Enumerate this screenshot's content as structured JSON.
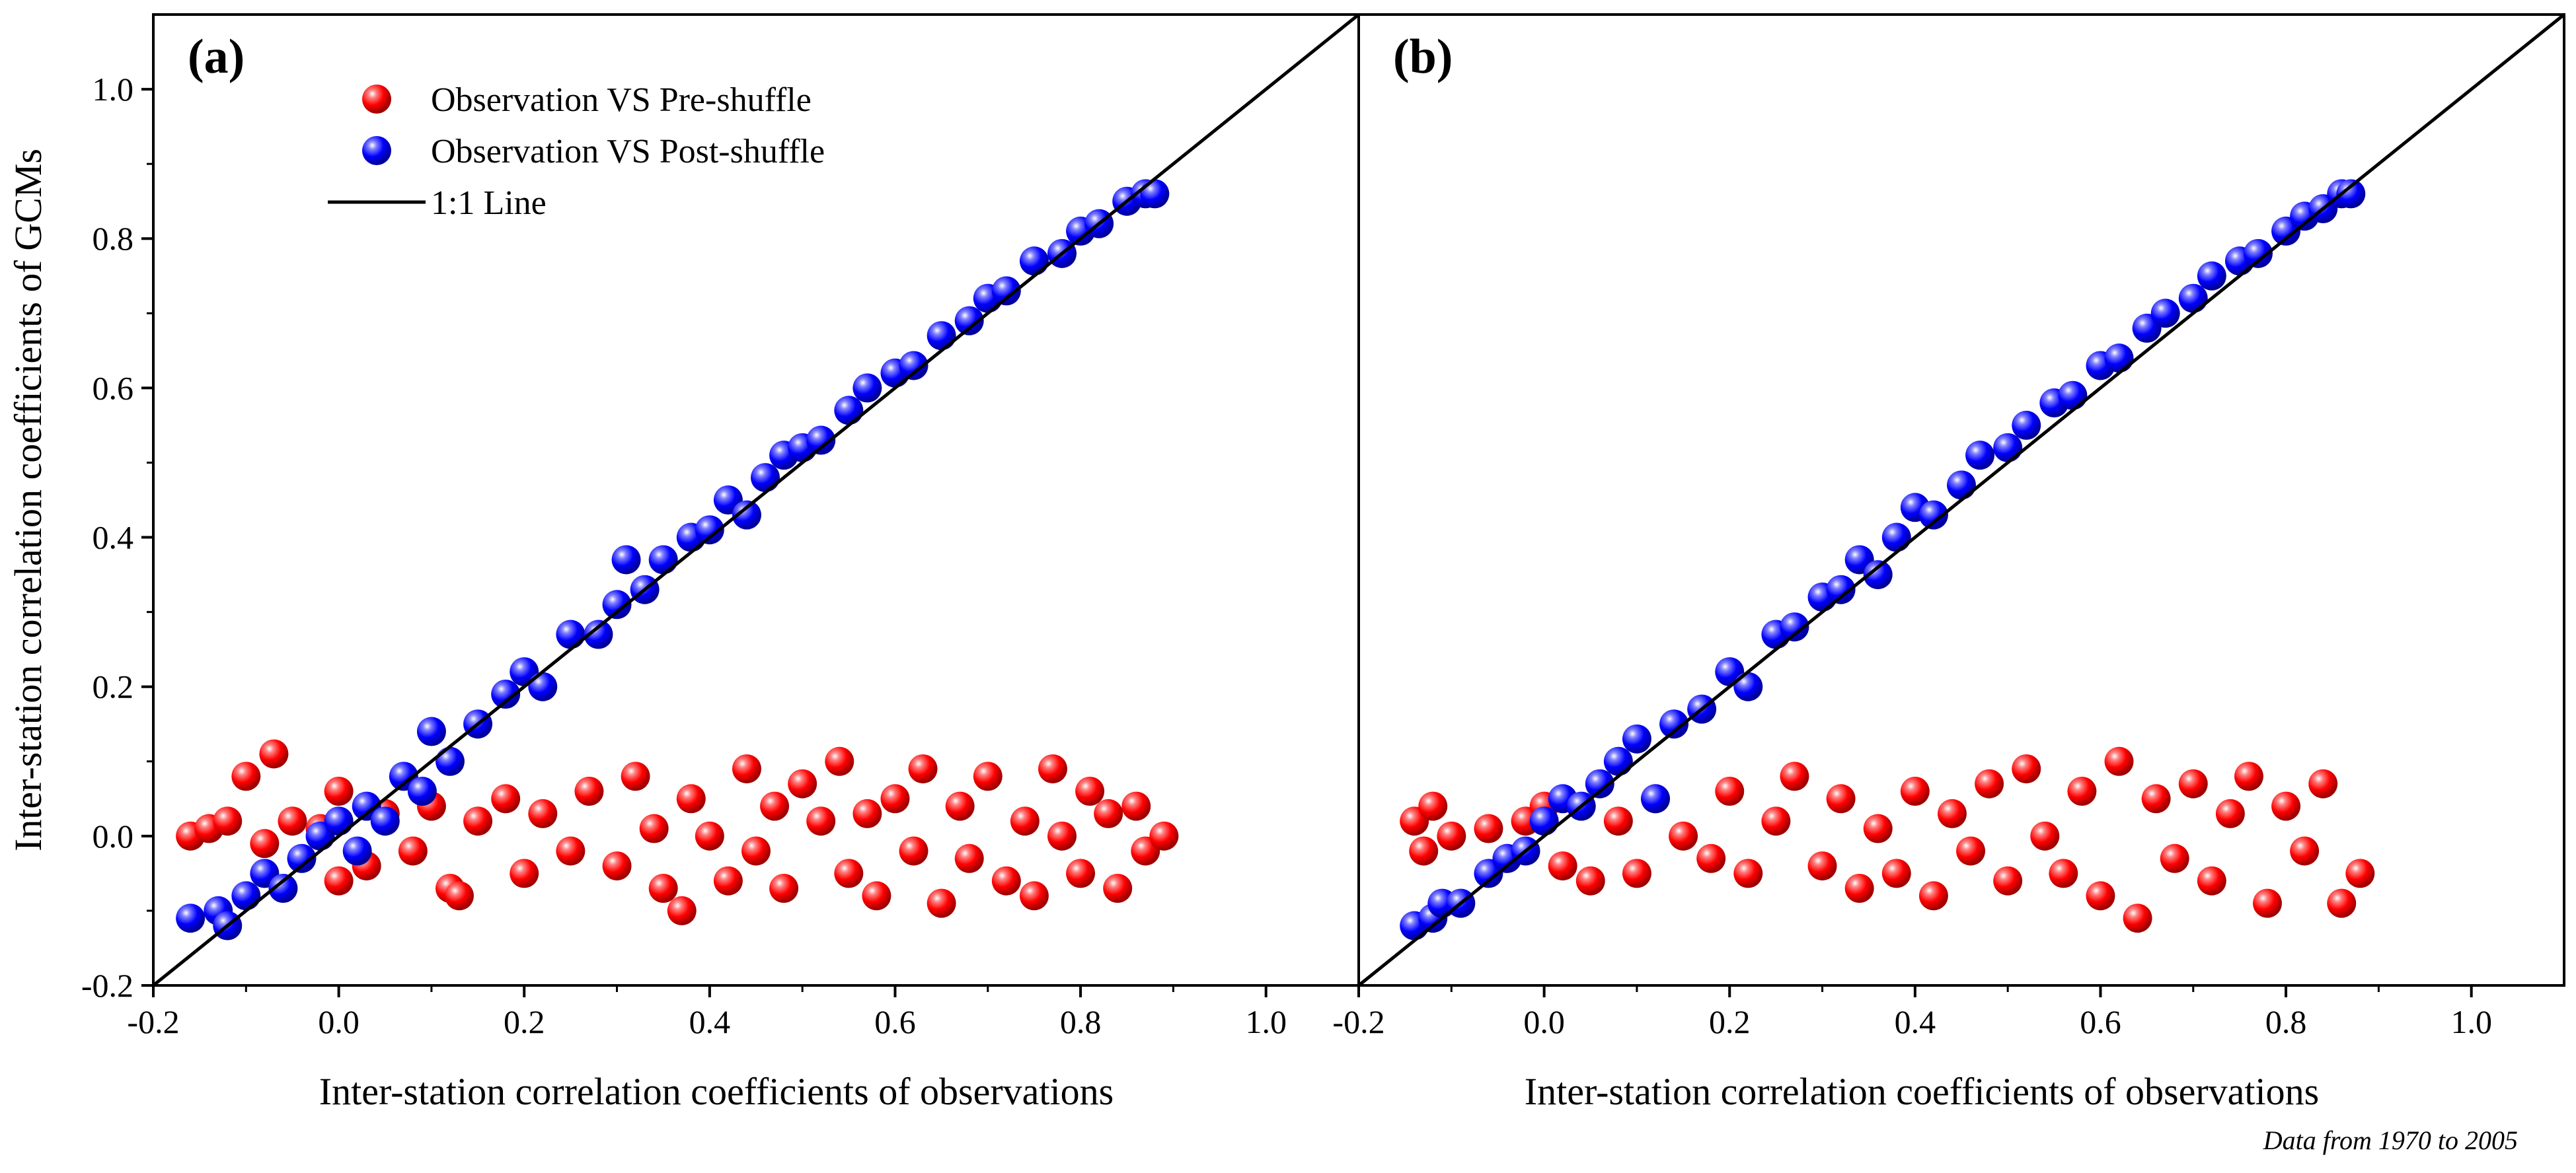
{
  "figure": {
    "footnote": "Data from 1970 to 2005",
    "colors": {
      "pre": "#ff0000",
      "post": "#0000ff",
      "line": "#000000"
    }
  },
  "legend": {
    "pre_label": "Observation VS Pre-shuffle",
    "post_label": "Observation VS Post-shuffle",
    "line_label": "1:1 Line"
  },
  "chart_data": [
    {
      "type": "scatter",
      "panel": "(a)",
      "title": "",
      "xlabel": "Inter-station correlation coefficients of observations",
      "ylabel": "Inter-station correlation coefficients of GCMs",
      "xlim": [
        -0.2,
        1.1
      ],
      "ylim": [
        -0.2,
        1.1
      ],
      "xticks": [
        "-0.2",
        "0.0",
        "0.2",
        "0.4",
        "0.6",
        "0.8",
        "1.0"
      ],
      "yticks": [
        "-0.2",
        "0.0",
        "0.2",
        "0.4",
        "0.6",
        "0.8",
        "1.0"
      ],
      "reference_line": "1:1",
      "series": [
        {
          "name": "Observation VS Pre-shuffle",
          "points": [
            [
              -0.16,
              0.0
            ],
            [
              -0.14,
              0.01
            ],
            [
              -0.12,
              0.02
            ],
            [
              -0.1,
              0.08
            ],
            [
              -0.07,
              0.11
            ],
            [
              -0.08,
              -0.01
            ],
            [
              -0.05,
              0.02
            ],
            [
              -0.02,
              0.01
            ],
            [
              0.0,
              -0.06
            ],
            [
              0.0,
              0.06
            ],
            [
              0.03,
              -0.04
            ],
            [
              0.05,
              0.03
            ],
            [
              0.08,
              -0.02
            ],
            [
              0.1,
              0.04
            ],
            [
              0.12,
              -0.07
            ],
            [
              0.13,
              -0.08
            ],
            [
              0.15,
              0.02
            ],
            [
              0.18,
              0.05
            ],
            [
              0.2,
              -0.05
            ],
            [
              0.22,
              0.03
            ],
            [
              0.25,
              -0.02
            ],
            [
              0.27,
              0.06
            ],
            [
              0.3,
              -0.04
            ],
            [
              0.32,
              0.08
            ],
            [
              0.34,
              0.01
            ],
            [
              0.35,
              -0.07
            ],
            [
              0.37,
              -0.1
            ],
            [
              0.38,
              0.05
            ],
            [
              0.4,
              0.0
            ],
            [
              0.42,
              -0.06
            ],
            [
              0.44,
              0.09
            ],
            [
              0.45,
              -0.02
            ],
            [
              0.47,
              0.04
            ],
            [
              0.48,
              -0.07
            ],
            [
              0.5,
              0.07
            ],
            [
              0.52,
              0.02
            ],
            [
              0.54,
              0.1
            ],
            [
              0.55,
              -0.05
            ],
            [
              0.57,
              0.03
            ],
            [
              0.58,
              -0.08
            ],
            [
              0.6,
              0.05
            ],
            [
              0.62,
              -0.02
            ],
            [
              0.63,
              0.09
            ],
            [
              0.65,
              -0.09
            ],
            [
              0.67,
              0.04
            ],
            [
              0.68,
              -0.03
            ],
            [
              0.7,
              0.08
            ],
            [
              0.72,
              -0.06
            ],
            [
              0.74,
              0.02
            ],
            [
              0.75,
              -0.08
            ],
            [
              0.77,
              0.09
            ],
            [
              0.78,
              0.0
            ],
            [
              0.8,
              -0.05
            ],
            [
              0.81,
              0.06
            ],
            [
              0.83,
              0.03
            ],
            [
              0.84,
              -0.07
            ],
            [
              0.86,
              0.04
            ],
            [
              0.87,
              -0.02
            ],
            [
              0.89,
              0.0
            ]
          ]
        },
        {
          "name": "Observation VS Post-shuffle",
          "points": [
            [
              -0.16,
              -0.11
            ],
            [
              -0.13,
              -0.1
            ],
            [
              -0.12,
              -0.12
            ],
            [
              -0.1,
              -0.08
            ],
            [
              -0.08,
              -0.05
            ],
            [
              -0.06,
              -0.07
            ],
            [
              -0.04,
              -0.03
            ],
            [
              -0.02,
              0.0
            ],
            [
              0.0,
              0.02
            ],
            [
              0.02,
              -0.02
            ],
            [
              0.03,
              0.04
            ],
            [
              0.05,
              0.02
            ],
            [
              0.07,
              0.08
            ],
            [
              0.09,
              0.06
            ],
            [
              0.1,
              0.14
            ],
            [
              0.12,
              0.1
            ],
            [
              0.15,
              0.15
            ],
            [
              0.18,
              0.19
            ],
            [
              0.2,
              0.22
            ],
            [
              0.22,
              0.2
            ],
            [
              0.25,
              0.27
            ],
            [
              0.28,
              0.27
            ],
            [
              0.3,
              0.31
            ],
            [
              0.31,
              0.37
            ],
            [
              0.33,
              0.33
            ],
            [
              0.35,
              0.37
            ],
            [
              0.38,
              0.4
            ],
            [
              0.4,
              0.41
            ],
            [
              0.42,
              0.45
            ],
            [
              0.44,
              0.43
            ],
            [
              0.46,
              0.48
            ],
            [
              0.48,
              0.51
            ],
            [
              0.5,
              0.52
            ],
            [
              0.52,
              0.53
            ],
            [
              0.55,
              0.57
            ],
            [
              0.57,
              0.6
            ],
            [
              0.6,
              0.62
            ],
            [
              0.62,
              0.63
            ],
            [
              0.65,
              0.67
            ],
            [
              0.68,
              0.69
            ],
            [
              0.7,
              0.72
            ],
            [
              0.72,
              0.73
            ],
            [
              0.75,
              0.77
            ],
            [
              0.78,
              0.78
            ],
            [
              0.8,
              0.81
            ],
            [
              0.82,
              0.82
            ],
            [
              0.85,
              0.85
            ],
            [
              0.87,
              0.86
            ],
            [
              0.88,
              0.86
            ]
          ]
        }
      ]
    },
    {
      "type": "scatter",
      "panel": "(b)",
      "title": "",
      "xlabel": "Inter-station correlation coefficients of observations",
      "ylabel": "",
      "xlim": [
        -0.2,
        1.1
      ],
      "ylim": [
        -0.2,
        1.1
      ],
      "xticks": [
        "-0.2",
        "0.0",
        "0.2",
        "0.4",
        "0.6",
        "0.8",
        "1.0"
      ],
      "yticks": [],
      "reference_line": "1:1",
      "series": [
        {
          "name": "Observation VS Pre-shuffle",
          "points": [
            [
              -0.14,
              0.02
            ],
            [
              -0.12,
              0.04
            ],
            [
              -0.13,
              -0.02
            ],
            [
              -0.1,
              0.0
            ],
            [
              -0.06,
              0.01
            ],
            [
              -0.04,
              -0.03
            ],
            [
              -0.02,
              0.02
            ],
            [
              0.0,
              0.04
            ],
            [
              0.02,
              -0.04
            ],
            [
              0.05,
              -0.06
            ],
            [
              0.08,
              0.02
            ],
            [
              0.1,
              -0.05
            ],
            [
              0.12,
              0.05
            ],
            [
              0.15,
              0.0
            ],
            [
              0.18,
              -0.03
            ],
            [
              0.2,
              0.06
            ],
            [
              0.22,
              -0.05
            ],
            [
              0.25,
              0.02
            ],
            [
              0.27,
              0.08
            ],
            [
              0.3,
              -0.04
            ],
            [
              0.32,
              0.05
            ],
            [
              0.34,
              -0.07
            ],
            [
              0.36,
              0.01
            ],
            [
              0.38,
              -0.05
            ],
            [
              0.4,
              0.06
            ],
            [
              0.42,
              -0.08
            ],
            [
              0.44,
              0.03
            ],
            [
              0.46,
              -0.02
            ],
            [
              0.48,
              0.07
            ],
            [
              0.5,
              -0.06
            ],
            [
              0.52,
              0.09
            ],
            [
              0.54,
              0.0
            ],
            [
              0.56,
              -0.05
            ],
            [
              0.58,
              0.06
            ],
            [
              0.6,
              -0.08
            ],
            [
              0.62,
              0.1
            ],
            [
              0.64,
              -0.11
            ],
            [
              0.66,
              0.05
            ],
            [
              0.68,
              -0.03
            ],
            [
              0.7,
              0.07
            ],
            [
              0.72,
              -0.06
            ],
            [
              0.74,
              0.03
            ],
            [
              0.76,
              0.08
            ],
            [
              0.78,
              -0.09
            ],
            [
              0.8,
              0.04
            ],
            [
              0.82,
              -0.02
            ],
            [
              0.84,
              0.07
            ],
            [
              0.86,
              -0.09
            ],
            [
              0.88,
              -0.05
            ]
          ]
        },
        {
          "name": "Observation VS Post-shuffle",
          "points": [
            [
              -0.14,
              -0.12
            ],
            [
              -0.12,
              -0.11
            ],
            [
              -0.11,
              -0.09
            ],
            [
              -0.09,
              -0.09
            ],
            [
              -0.06,
              -0.05
            ],
            [
              -0.04,
              -0.03
            ],
            [
              -0.02,
              -0.02
            ],
            [
              0.0,
              0.02
            ],
            [
              0.02,
              0.05
            ],
            [
              0.04,
              0.04
            ],
            [
              0.06,
              0.07
            ],
            [
              0.08,
              0.1
            ],
            [
              0.1,
              0.13
            ],
            [
              0.12,
              0.05
            ],
            [
              0.14,
              0.15
            ],
            [
              0.17,
              0.17
            ],
            [
              0.2,
              0.22
            ],
            [
              0.22,
              0.2
            ],
            [
              0.25,
              0.27
            ],
            [
              0.27,
              0.28
            ],
            [
              0.3,
              0.32
            ],
            [
              0.32,
              0.33
            ],
            [
              0.34,
              0.37
            ],
            [
              0.36,
              0.35
            ],
            [
              0.38,
              0.4
            ],
            [
              0.4,
              0.44
            ],
            [
              0.42,
              0.43
            ],
            [
              0.45,
              0.47
            ],
            [
              0.47,
              0.51
            ],
            [
              0.5,
              0.52
            ],
            [
              0.52,
              0.55
            ],
            [
              0.55,
              0.58
            ],
            [
              0.57,
              0.59
            ],
            [
              0.6,
              0.63
            ],
            [
              0.62,
              0.64
            ],
            [
              0.65,
              0.68
            ],
            [
              0.67,
              0.7
            ],
            [
              0.7,
              0.72
            ],
            [
              0.72,
              0.75
            ],
            [
              0.75,
              0.77
            ],
            [
              0.77,
              0.78
            ],
            [
              0.8,
              0.81
            ],
            [
              0.82,
              0.83
            ],
            [
              0.84,
              0.84
            ],
            [
              0.86,
              0.86
            ],
            [
              0.87,
              0.86
            ]
          ]
        }
      ]
    }
  ]
}
